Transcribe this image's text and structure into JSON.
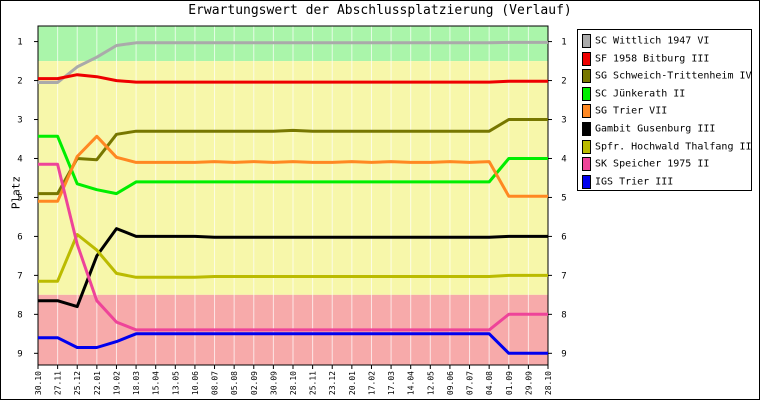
{
  "chart_data": {
    "type": "line",
    "title": "Erwartungswert der Abschlussplatzierung (Verlauf)",
    "xlabel": "",
    "ylabel": "Platz",
    "ylim": [
      9.3,
      0.6
    ],
    "y_ticks": [
      "1",
      "2",
      "3",
      "4",
      "5",
      "6",
      "7",
      "8",
      "9"
    ],
    "bands": [
      {
        "from": 0.6,
        "to": 1.5,
        "color": "#aaf5aa"
      },
      {
        "from": 1.5,
        "to": 7.5,
        "color": "#f7f7aa"
      },
      {
        "from": 7.5,
        "to": 9.3,
        "color": "#f7aaaa"
      }
    ],
    "x": [
      "30.10",
      "27.11",
      "25.12",
      "22.01",
      "19.02",
      "18.03",
      "15.04",
      "13.05",
      "10.06",
      "08.07",
      "05.08",
      "02.09",
      "30.09",
      "28.10",
      "25.11",
      "23.12",
      "20.01",
      "17.02",
      "17.03",
      "14.04",
      "12.05",
      "09.06",
      "07.07",
      "04.08",
      "01.09",
      "29.09",
      "28.10"
    ],
    "grid": "vertical",
    "legend_position": "right",
    "series": [
      {
        "name": "SC Wittlich 1947 VI",
        "color": "#aaaaaa",
        "values": [
          2.05,
          2.05,
          1.65,
          1.4,
          1.1,
          1.03,
          1.03,
          1.03,
          1.03,
          1.03,
          1.03,
          1.03,
          1.03,
          1.03,
          1.03,
          1.03,
          1.03,
          1.03,
          1.03,
          1.03,
          1.03,
          1.03,
          1.03,
          1.03,
          1.02,
          1.02,
          1.02
        ]
      },
      {
        "name": "SF 1958 Bitburg III",
        "color": "#ee0000",
        "values": [
          1.95,
          1.95,
          1.85,
          1.9,
          2.0,
          2.04,
          2.04,
          2.04,
          2.04,
          2.04,
          2.04,
          2.04,
          2.04,
          2.04,
          2.04,
          2.04,
          2.04,
          2.04,
          2.04,
          2.04,
          2.04,
          2.04,
          2.04,
          2.04,
          2.02,
          2.02,
          2.02
        ]
      },
      {
        "name": "SG Schweich-Trittenheim IV",
        "color": "#777700",
        "values": [
          4.9,
          4.9,
          4.0,
          4.03,
          3.38,
          3.3,
          3.3,
          3.3,
          3.3,
          3.3,
          3.3,
          3.3,
          3.3,
          3.28,
          3.3,
          3.3,
          3.3,
          3.3,
          3.3,
          3.3,
          3.3,
          3.3,
          3.3,
          3.3,
          3.0,
          3.0,
          3.0
        ]
      },
      {
        "name": "SC Jünkerath II",
        "color": "#00ee00",
        "values": [
          3.43,
          3.43,
          4.65,
          4.8,
          4.9,
          4.6,
          4.6,
          4.6,
          4.6,
          4.6,
          4.6,
          4.6,
          4.6,
          4.6,
          4.6,
          4.6,
          4.6,
          4.6,
          4.6,
          4.6,
          4.6,
          4.6,
          4.6,
          4.6,
          4.0,
          4.0,
          4.0
        ]
      },
      {
        "name": "SG Trier VII",
        "color": "#ff8822",
        "values": [
          5.1,
          5.1,
          3.95,
          3.43,
          3.97,
          4.1,
          4.1,
          4.1,
          4.1,
          4.08,
          4.1,
          4.08,
          4.1,
          4.08,
          4.1,
          4.1,
          4.08,
          4.1,
          4.08,
          4.1,
          4.1,
          4.08,
          4.1,
          4.08,
          4.97,
          4.97,
          4.97
        ]
      },
      {
        "name": "Gambit Gusenburg III",
        "color": "#000000",
        "values": [
          7.65,
          7.65,
          7.8,
          6.5,
          5.8,
          6.0,
          6.0,
          6.0,
          6.0,
          6.02,
          6.02,
          6.02,
          6.02,
          6.02,
          6.02,
          6.02,
          6.02,
          6.02,
          6.02,
          6.02,
          6.02,
          6.02,
          6.02,
          6.02,
          6.0,
          6.0,
          6.0
        ]
      },
      {
        "name": "Spfr. Hochwald Thalfang II",
        "color": "#bbbb00",
        "values": [
          7.15,
          7.15,
          5.95,
          6.35,
          6.95,
          7.05,
          7.05,
          7.05,
          7.05,
          7.03,
          7.03,
          7.03,
          7.03,
          7.03,
          7.03,
          7.03,
          7.03,
          7.03,
          7.03,
          7.03,
          7.03,
          7.03,
          7.03,
          7.03,
          7.0,
          7.0,
          7.0
        ]
      },
      {
        "name": "SK Speicher 1975 II",
        "color": "#ee4499",
        "values": [
          4.15,
          4.15,
          6.2,
          7.65,
          8.2,
          8.4,
          8.4,
          8.4,
          8.4,
          8.4,
          8.4,
          8.4,
          8.4,
          8.4,
          8.4,
          8.4,
          8.4,
          8.4,
          8.4,
          8.4,
          8.4,
          8.4,
          8.4,
          8.4,
          8.0,
          8.0,
          8.0
        ]
      },
      {
        "name": "IGS Trier III",
        "color": "#0000ee",
        "values": [
          8.6,
          8.6,
          8.85,
          8.85,
          8.7,
          8.5,
          8.5,
          8.5,
          8.5,
          8.5,
          8.5,
          8.5,
          8.5,
          8.5,
          8.5,
          8.5,
          8.5,
          8.5,
          8.5,
          8.5,
          8.5,
          8.5,
          8.5,
          8.5,
          9.0,
          9.0,
          9.0
        ]
      }
    ]
  }
}
